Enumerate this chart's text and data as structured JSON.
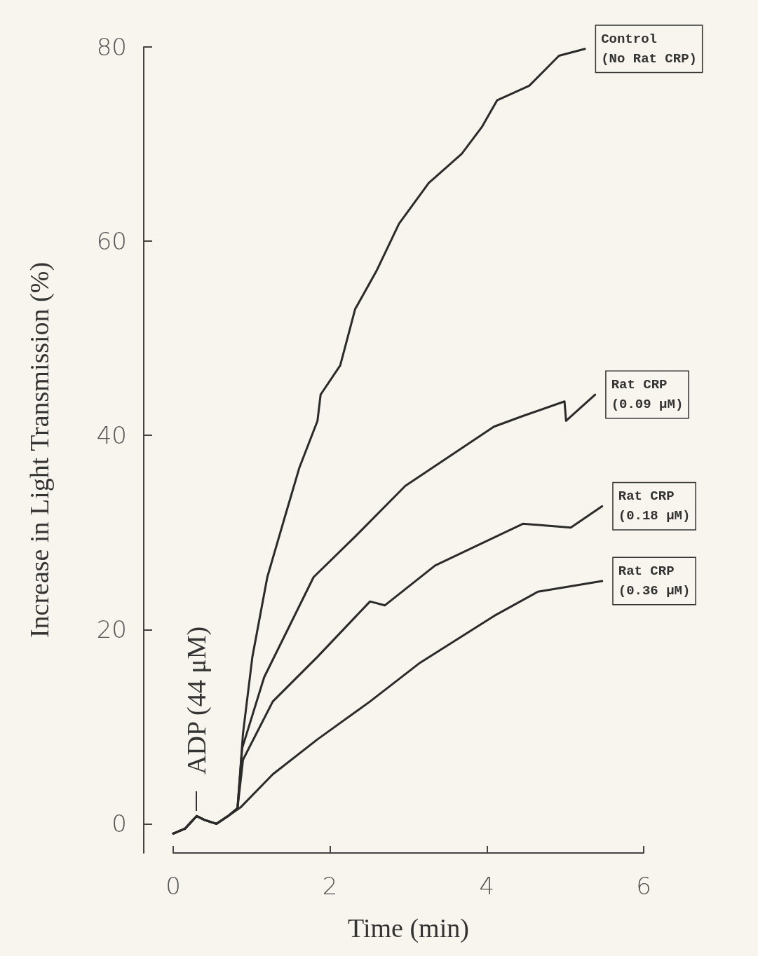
{
  "chart_data": {
    "type": "line",
    "xlabel": "Time (min)",
    "ylabel": "Increase in Light Transmission (%)",
    "xlim": [
      0,
      6
    ],
    "xticks": [
      0,
      2,
      4,
      6
    ],
    "ylim": [
      -3,
      80
    ],
    "yticks": [
      0,
      20,
      40,
      60,
      80
    ],
    "grid": false,
    "legend": false,
    "marker": "none",
    "line_style": "solid",
    "annotations": [
      "ADP (44 μM)"
    ],
    "series": [
      {
        "name": "Control (No Rat CRP)",
        "color": "#2b2b2b",
        "x": [
          0,
          0.15,
          0.3,
          0.4,
          0.55,
          0.7,
          0.82,
          0.89,
          1.01,
          1.2,
          1.42,
          1.61,
          1.84,
          1.88,
          2.13,
          2.32,
          2.59,
          2.88,
          3.26,
          3.68,
          3.94,
          4.13,
          4.54,
          4.92,
          5.25
        ],
        "values": [
          -1,
          -0.5,
          0.8,
          0.4,
          0,
          0.8,
          1.6,
          9.3,
          17.2,
          25.4,
          31.5,
          36.7,
          41.5,
          44.2,
          47.2,
          53,
          56.9,
          61.8,
          66,
          69,
          71.8,
          74.5,
          76,
          79.1,
          79.8
        ]
      },
      {
        "name": "Rat CRP (0.09 μM)",
        "color": "#2b2b2b",
        "x": [
          0,
          0.15,
          0.3,
          0.4,
          0.55,
          0.7,
          0.82,
          0.88,
          1.16,
          1.79,
          2.36,
          2.96,
          4.09,
          4.46,
          4.99,
          5.01,
          5.38
        ],
        "values": [
          -1,
          -0.5,
          0.8,
          0.4,
          0,
          0.8,
          1.6,
          7.8,
          15.1,
          25.4,
          29.9,
          34.8,
          40.9,
          42,
          43.5,
          41.5,
          44.2
        ]
      },
      {
        "name": "Rat CRP (0.18 μM)",
        "color": "#2b2b2b",
        "x": [
          0,
          0.15,
          0.3,
          0.4,
          0.55,
          0.7,
          0.82,
          0.89,
          1.27,
          1.84,
          2.51,
          2.7,
          3.34,
          4.46,
          5.07,
          5.47
        ],
        "values": [
          -1,
          -0.5,
          0.8,
          0.4,
          0,
          0.8,
          1.6,
          6.6,
          12.6,
          17.2,
          22.9,
          22.5,
          26.6,
          30.9,
          30.5,
          32.7
        ]
      },
      {
        "name": "Rat CRP (0.36 μM)",
        "color": "#2b2b2b",
        "x": [
          0,
          0.15,
          0.3,
          0.4,
          0.55,
          0.7,
          0.86,
          1.27,
          1.84,
          2.51,
          3.15,
          4.09,
          4.65,
          5.47
        ],
        "values": [
          -1,
          -0.5,
          0.8,
          0.4,
          0,
          0.8,
          1.7,
          5.1,
          8.7,
          12.6,
          16.6,
          21.4,
          23.9,
          25
        ]
      }
    ]
  }
}
